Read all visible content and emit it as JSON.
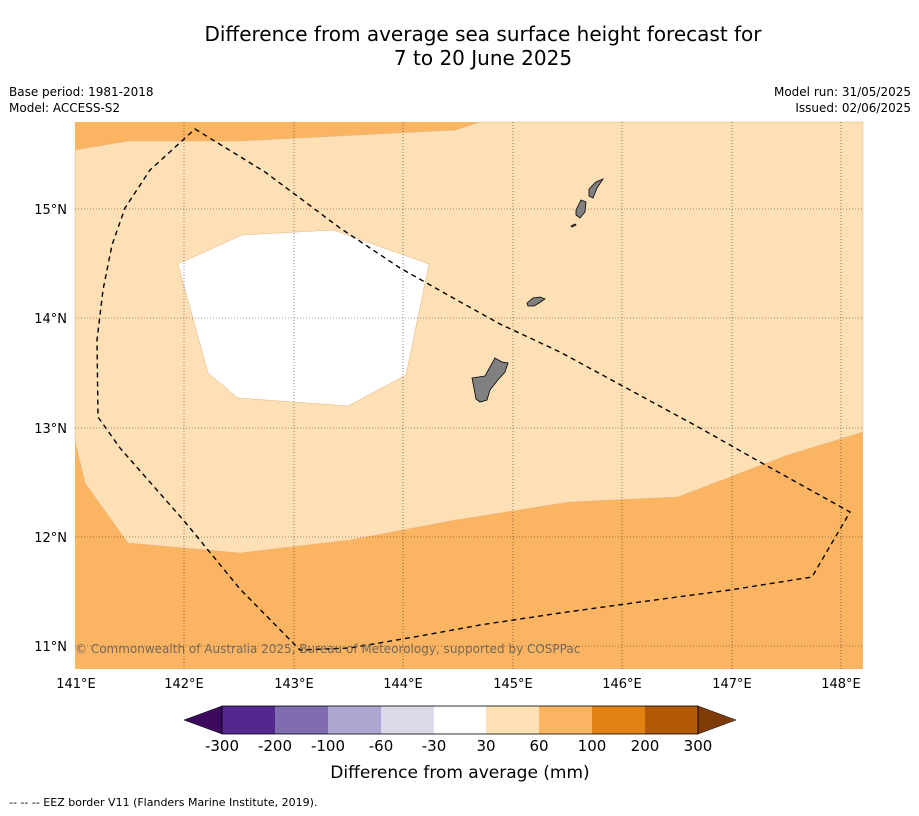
{
  "title": {
    "line1": "Difference from average sea surface height forecast for",
    "line2": "7 to 20 June 2025"
  },
  "meta": {
    "base_period": "Base period: 1981-2018",
    "model": "Model: ACCESS-S2",
    "model_run": "Model run: 31/05/2025",
    "issued": "Issued: 02/06/2025"
  },
  "map": {
    "lon_range": [
      141.0,
      148.2
    ],
    "lat_range": [
      10.8,
      15.8
    ],
    "lon_ticks": [
      "141°E",
      "142°E",
      "143°E",
      "144°E",
      "145°E",
      "146°E",
      "147°E",
      "148°E"
    ],
    "lat_ticks": [
      "11°N",
      "12°N",
      "13°N",
      "14°N",
      "15°N"
    ],
    "copyright": "© Commonwealth of Australia 2025, Bureau of Meteorology, supported by COSPPac",
    "land_color": "#808080",
    "features": [
      "Guam",
      "Rota",
      "Tinian",
      "Saipan",
      "EEZ border"
    ]
  },
  "colorbar": {
    "title": "Difference from average (mm)",
    "labels": [
      "-300",
      "-200",
      "-100",
      "-60",
      "-30",
      "30",
      "60",
      "100",
      "200",
      "300"
    ],
    "colors": [
      "#3b0a5e",
      "#54278f",
      "#7f6db0",
      "#aea5d1",
      "#dadaeb",
      "#ffffff",
      "#fde0b5",
      "#fbb562",
      "#e08214",
      "#b35806",
      "#7f3b08"
    ]
  },
  "footer": {
    "legend": "--  --  -- EEZ border V11 (Flanders Marine Institute, 2019)."
  }
}
